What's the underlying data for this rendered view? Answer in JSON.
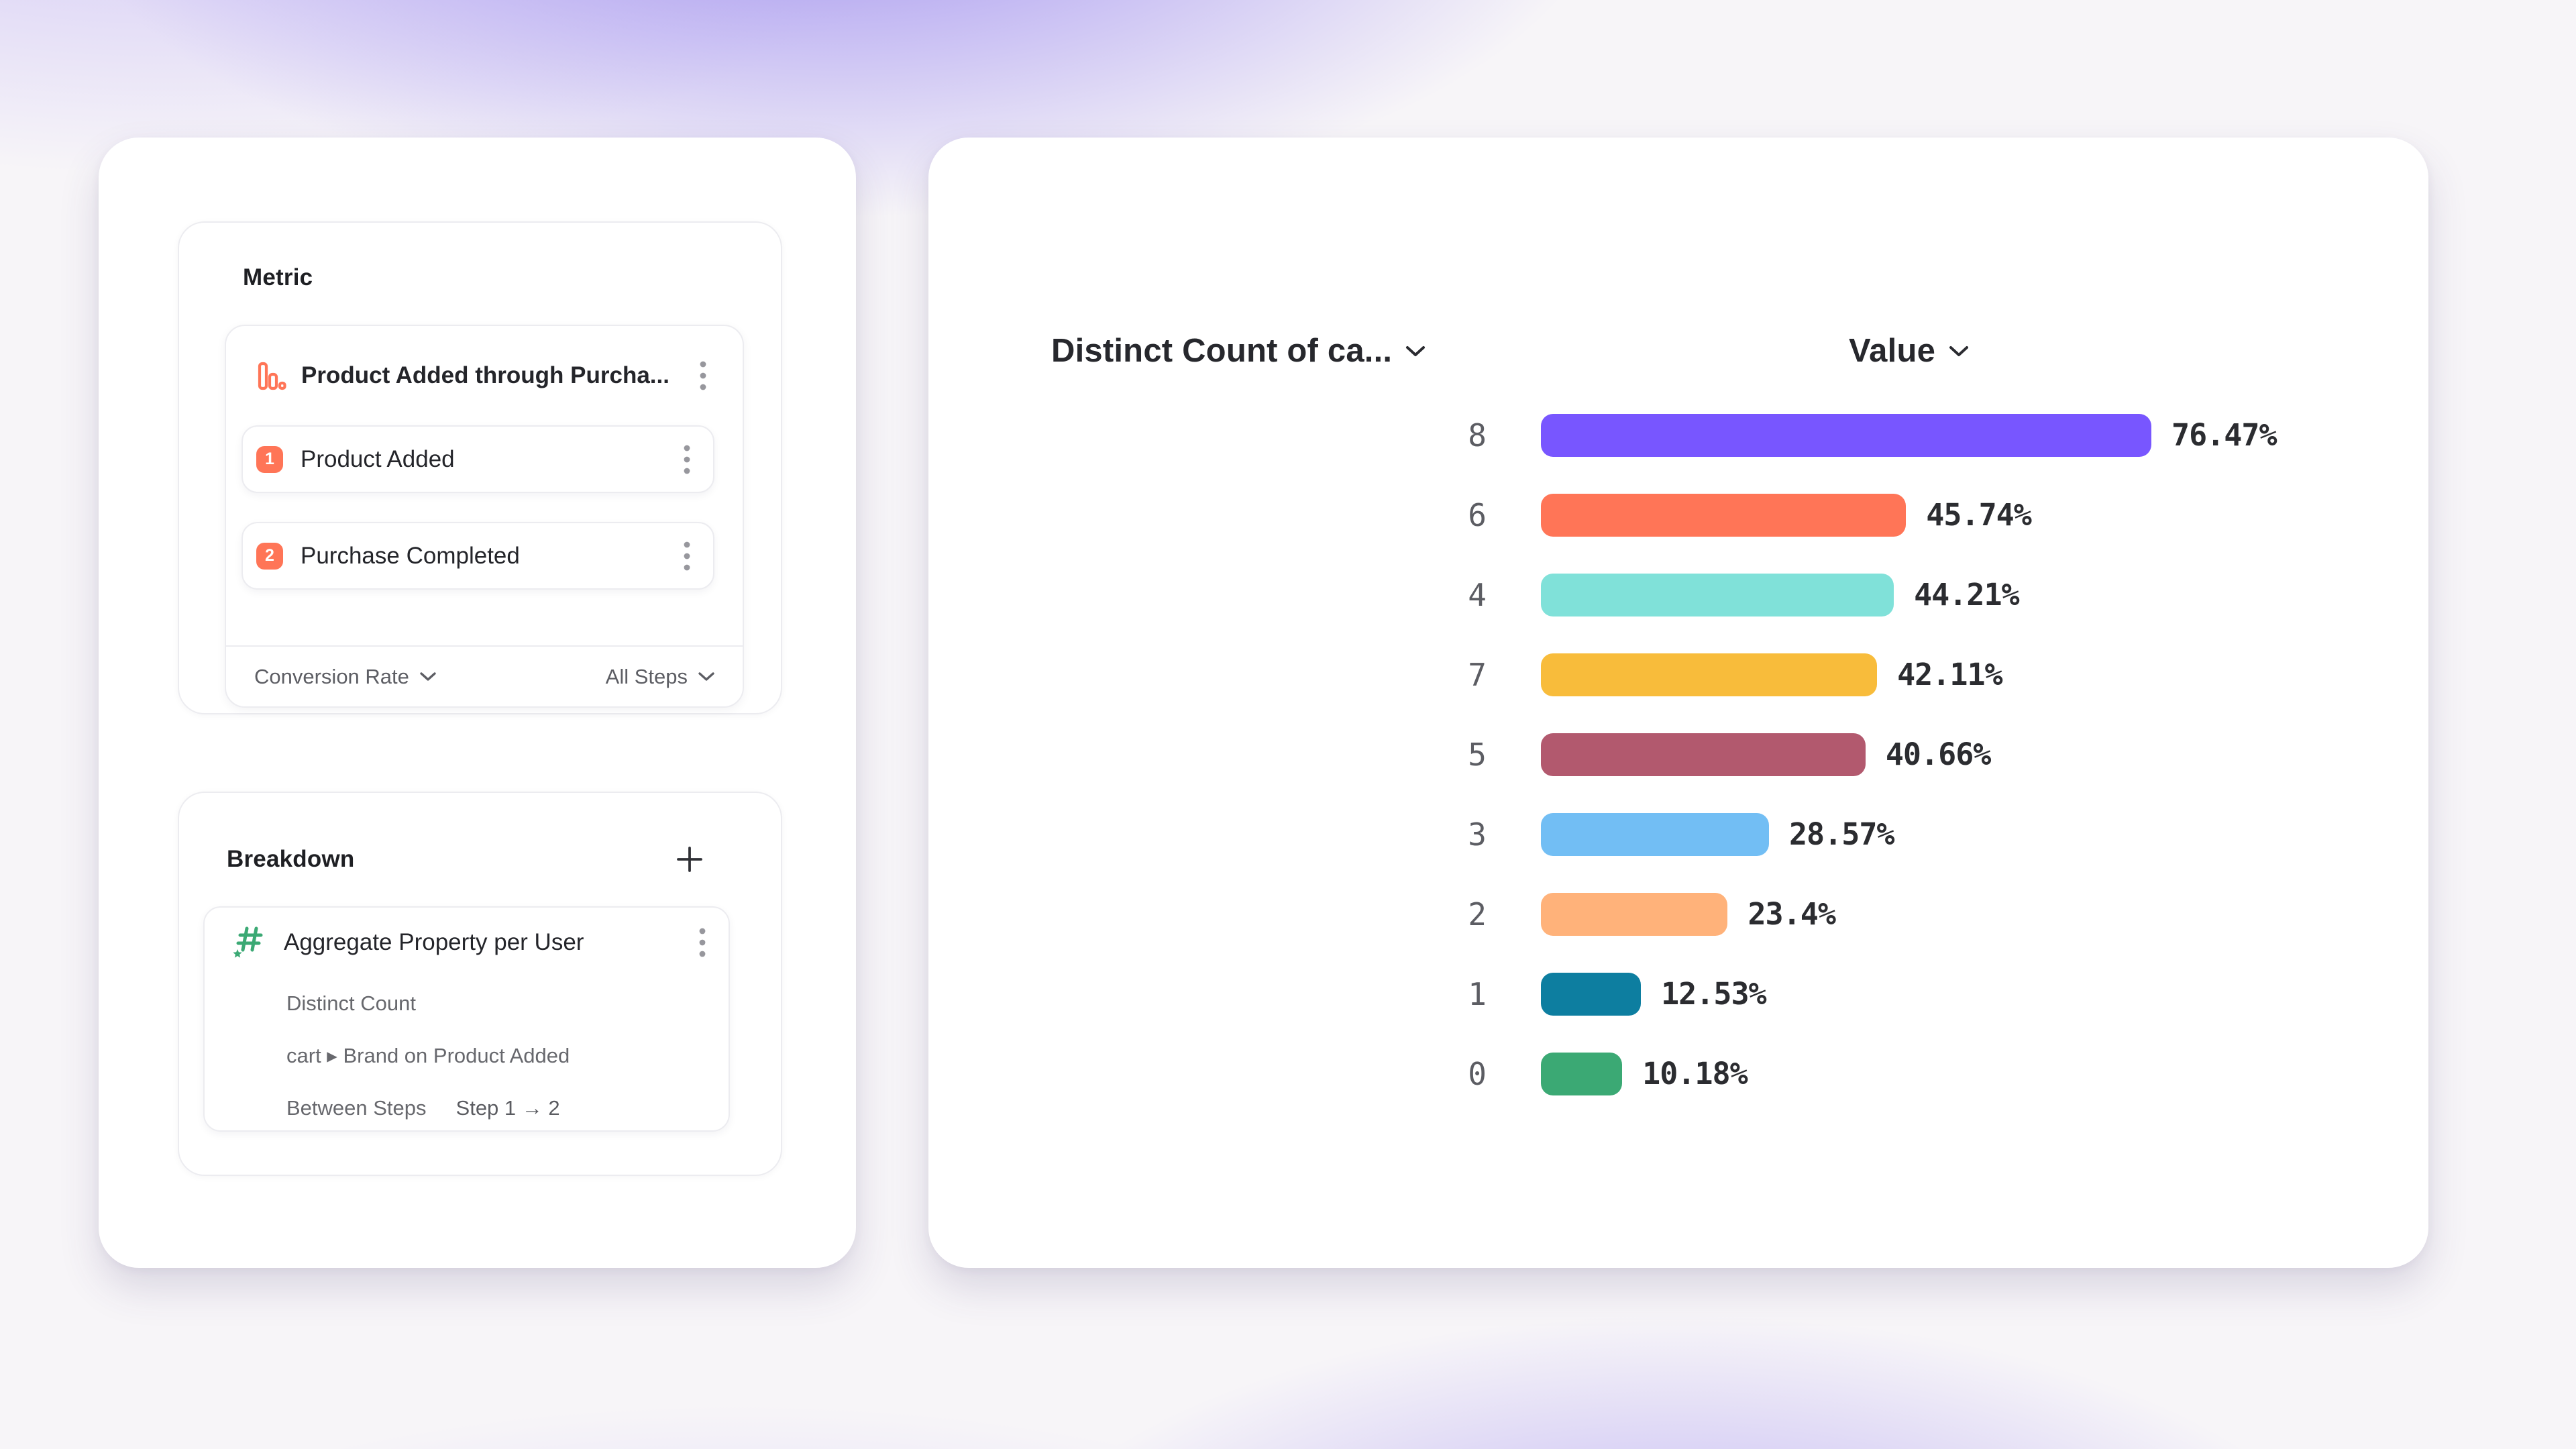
{
  "colors": {
    "step_accent": "#FF7557",
    "breakdown_icon_green": "#3BA974",
    "background_gradient_purple": "#A090EF",
    "panel_background": "#FFFFFF",
    "card_border": "#ECECF0",
    "primary_text": "#24252A",
    "secondary_text": "#5D5E64"
  },
  "metric": {
    "section_title": "Metric",
    "funnel": {
      "name": "Product Added through Purcha...",
      "steps": [
        {
          "index": "1",
          "label": "Product Added"
        },
        {
          "index": "2",
          "label": "Purchase Completed"
        }
      ],
      "measure_dropdown": "Conversion Rate",
      "steps_dropdown": "All Steps"
    }
  },
  "breakdown": {
    "section_title": "Breakdown",
    "item": {
      "name": "Aggregate Property per User",
      "aggregation": "Distinct Count",
      "property": "cart ▸ Brand on Product Added",
      "scope_label": "Between Steps",
      "scope_value": "Step 1 → 2"
    }
  },
  "chart": {
    "column1_header": "Distinct Count of ca...",
    "column2_header": "Value"
  },
  "chart_data": {
    "type": "bar",
    "orientation": "horizontal",
    "title": "",
    "xlabel": "Value",
    "ylabel": "Distinct Count of ca...",
    "grid": false,
    "legend": false,
    "xlim": [
      0,
      84
    ],
    "categories": [
      "8",
      "6",
      "4",
      "7",
      "5",
      "3",
      "2",
      "1",
      "0"
    ],
    "values": [
      76.47,
      45.74,
      44.21,
      42.11,
      40.66,
      28.57,
      23.4,
      12.53,
      10.18
    ],
    "value_labels": [
      "76.47%",
      "45.74%",
      "44.21%",
      "42.11%",
      "40.66%",
      "28.57%",
      "23.4%",
      "12.53%",
      "10.18%"
    ],
    "bar_colors": [
      "#7856FF",
      "#FF7557",
      "#80E1D9",
      "#F8BC3B",
      "#B2596E",
      "#72BEF4",
      "#FFB27A",
      "#0D7EA0",
      "#3BA974"
    ]
  }
}
